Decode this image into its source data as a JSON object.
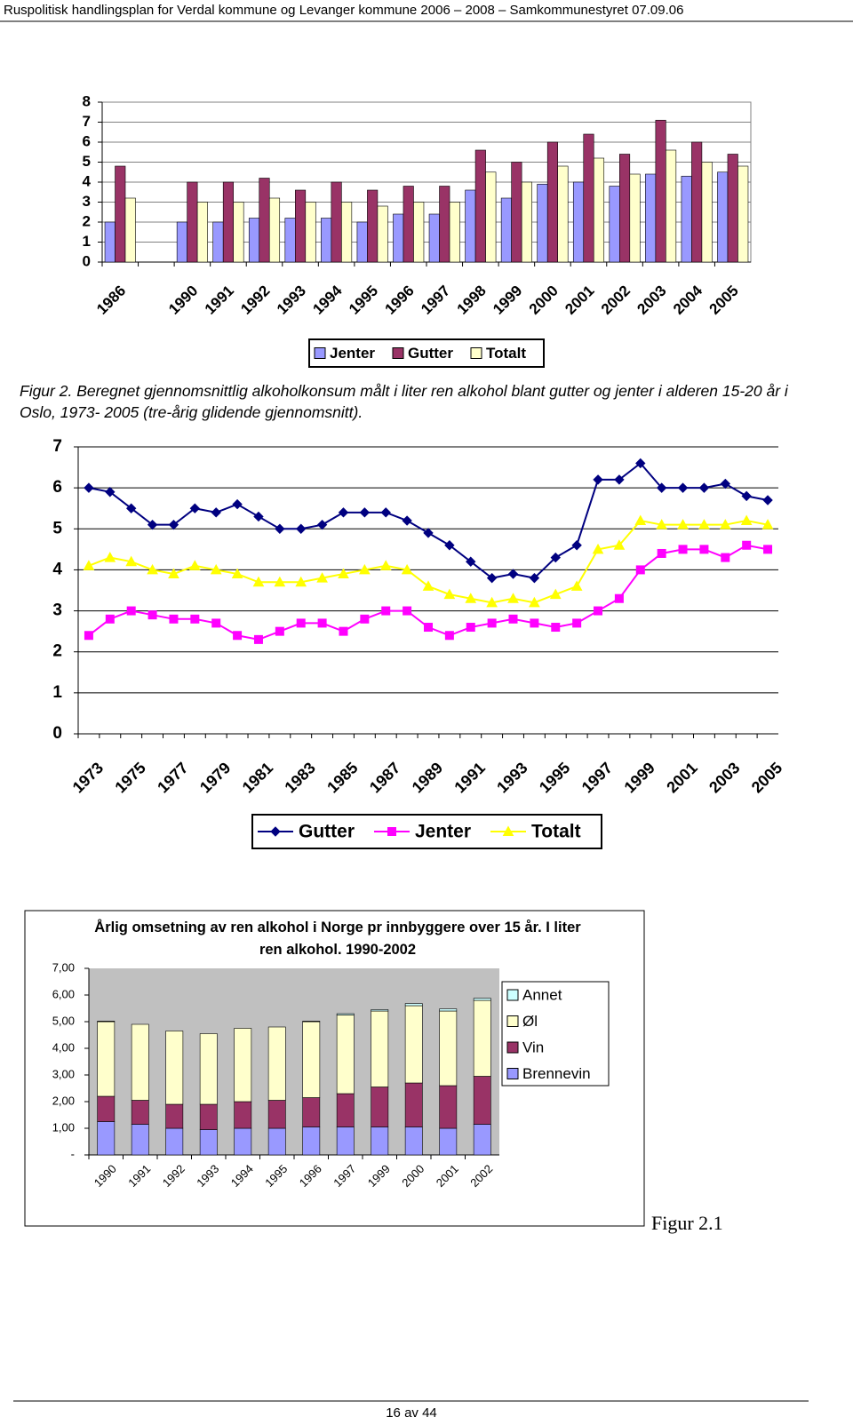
{
  "header": "Ruspolitisk handlingsplan for Verdal kommune og Levanger kommune 2006 – 2008 – Samkommunestyret 07.09.06",
  "caption": "Figur 2. Beregnet gjennomsnittlig alkoholkonsum målt i liter ren alkohol blant gutter og jenter i alderen 15-20 år i Oslo, 1973- 2005 (tre-årig glidende gjennomsnitt).",
  "figure_label": "Figur 2.1",
  "footer": "16 av 44",
  "chart_data": [
    {
      "type": "bar",
      "grid": true,
      "legend": "bottom",
      "categories": [
        "1986",
        null,
        "1990",
        "1991",
        "1992",
        "1993",
        "1994",
        "1995",
        "1996",
        "1997",
        "1998",
        "1999",
        "2000",
        "2001",
        "2002",
        "2003",
        "2004",
        "2005"
      ],
      "ylim": [
        0,
        8
      ],
      "yticks": [
        0,
        1,
        2,
        3,
        4,
        5,
        6,
        7,
        8
      ],
      "series": [
        {
          "name": "Jenter",
          "color": "#9999ff",
          "values": [
            2.0,
            null,
            2.0,
            2.0,
            2.2,
            2.2,
            2.2,
            2.0,
            2.4,
            2.4,
            3.6,
            3.2,
            3.9,
            4.0,
            3.8,
            4.4,
            4.3,
            4.5
          ]
        },
        {
          "name": "Gutter",
          "color": "#993366",
          "values": [
            4.8,
            null,
            4.0,
            4.0,
            4.2,
            3.6,
            4.0,
            3.6,
            3.8,
            3.8,
            5.6,
            5.0,
            6.0,
            6.4,
            5.4,
            7.1,
            6.0,
            5.4
          ]
        },
        {
          "name": "Totalt",
          "color": "#ffffcc",
          "values": [
            3.2,
            null,
            3.0,
            3.0,
            3.2,
            3.0,
            3.0,
            2.8,
            3.0,
            3.0,
            4.5,
            4.0,
            4.8,
            5.2,
            4.4,
            5.6,
            5.0,
            4.8
          ]
        }
      ]
    },
    {
      "type": "line",
      "grid": true,
      "legend": "bottom",
      "categories": [
        "1973",
        null,
        "1975",
        null,
        "1977",
        null,
        "1979",
        null,
        "1981",
        null,
        "1983",
        null,
        "1985",
        null,
        "1987",
        null,
        "1989",
        null,
        "1991",
        null,
        "1993",
        null,
        "1995",
        null,
        "1997",
        null,
        "1999",
        null,
        "2001",
        null,
        "2003",
        null,
        "2005"
      ],
      "ylim": [
        0,
        7
      ],
      "yticks": [
        0,
        1,
        2,
        3,
        4,
        5,
        6,
        7
      ],
      "series": [
        {
          "name": "Gutter",
          "color": "#000080",
          "marker": "diamond",
          "values": [
            6.0,
            5.9,
            5.5,
            5.1,
            5.1,
            5.5,
            5.4,
            5.6,
            5.3,
            5.0,
            5.0,
            5.1,
            5.4,
            5.4,
            5.4,
            5.2,
            4.9,
            4.6,
            4.2,
            3.8,
            3.9,
            3.8,
            4.3,
            4.6,
            6.2,
            6.2,
            6.6,
            6.0,
            6.0,
            6.0,
            6.1,
            5.8,
            5.7
          ]
        },
        {
          "name": "Jenter",
          "color": "#ff00ff",
          "marker": "square",
          "values": [
            2.4,
            2.8,
            3.0,
            2.9,
            2.8,
            2.8,
            2.7,
            2.4,
            2.3,
            2.5,
            2.7,
            2.7,
            2.5,
            2.8,
            3.0,
            3.0,
            2.6,
            2.4,
            2.6,
            2.7,
            2.8,
            2.7,
            2.6,
            2.7,
            3.0,
            3.3,
            4.0,
            4.4,
            4.5,
            4.5,
            4.3,
            4.6,
            4.5
          ]
        },
        {
          "name": "Totalt",
          "color": "#ffff00",
          "marker": "triangle",
          "values": [
            4.1,
            4.3,
            4.2,
            4.0,
            3.9,
            4.1,
            4.0,
            3.9,
            3.7,
            3.7,
            3.7,
            3.8,
            3.9,
            4.0,
            4.1,
            4.0,
            3.6,
            3.4,
            3.3,
            3.2,
            3.3,
            3.2,
            3.4,
            3.6,
            4.5,
            4.6,
            5.2,
            5.1,
            5.1,
            5.1,
            5.1,
            5.2,
            5.1
          ]
        }
      ]
    },
    {
      "type": "bar",
      "stacked": true,
      "grid": false,
      "legend": "right",
      "title": "Årlig omsetning av ren alkohol i Norge pr innbyggere over 15 år. I liter ren alkohol. 1990-2002",
      "categories": [
        "1990",
        "1991",
        "1992",
        "1993",
        "1994",
        "1995",
        "1996",
        "1997",
        "1999",
        "2000",
        "2001",
        "2002"
      ],
      "ylim": [
        0,
        7
      ],
      "yticks": [
        {
          "value": 0,
          "label": "-"
        },
        {
          "value": 1,
          "label": "1,00"
        },
        {
          "value": 2,
          "label": "2,00"
        },
        {
          "value": 3,
          "label": "3,00"
        },
        {
          "value": 4,
          "label": "4,00"
        },
        {
          "value": 5,
          "label": "5,00"
        },
        {
          "value": 6,
          "label": "6,00"
        },
        {
          "value": 7,
          "label": "7,00"
        }
      ],
      "series": [
        {
          "name": "Brennevin",
          "color": "#9999ff",
          "values": [
            1.25,
            1.15,
            1.0,
            0.95,
            1.0,
            1.0,
            1.05,
            1.05,
            1.05,
            1.05,
            1.0,
            1.15
          ]
        },
        {
          "name": "Vin",
          "color": "#993366",
          "values": [
            0.95,
            0.9,
            0.9,
            0.95,
            1.0,
            1.05,
            1.1,
            1.25,
            1.5,
            1.65,
            1.6,
            1.8
          ]
        },
        {
          "name": "Øl",
          "color": "#ffffcc",
          "values": [
            2.8,
            2.85,
            2.75,
            2.65,
            2.75,
            2.75,
            2.85,
            2.95,
            2.85,
            2.9,
            2.8,
            2.85
          ]
        },
        {
          "name": "Annet",
          "color": "#ccffff",
          "values": [
            0.02,
            0.0,
            0.0,
            0.0,
            0.0,
            0.0,
            0.02,
            0.05,
            0.05,
            0.08,
            0.08,
            0.08
          ]
        }
      ]
    }
  ]
}
